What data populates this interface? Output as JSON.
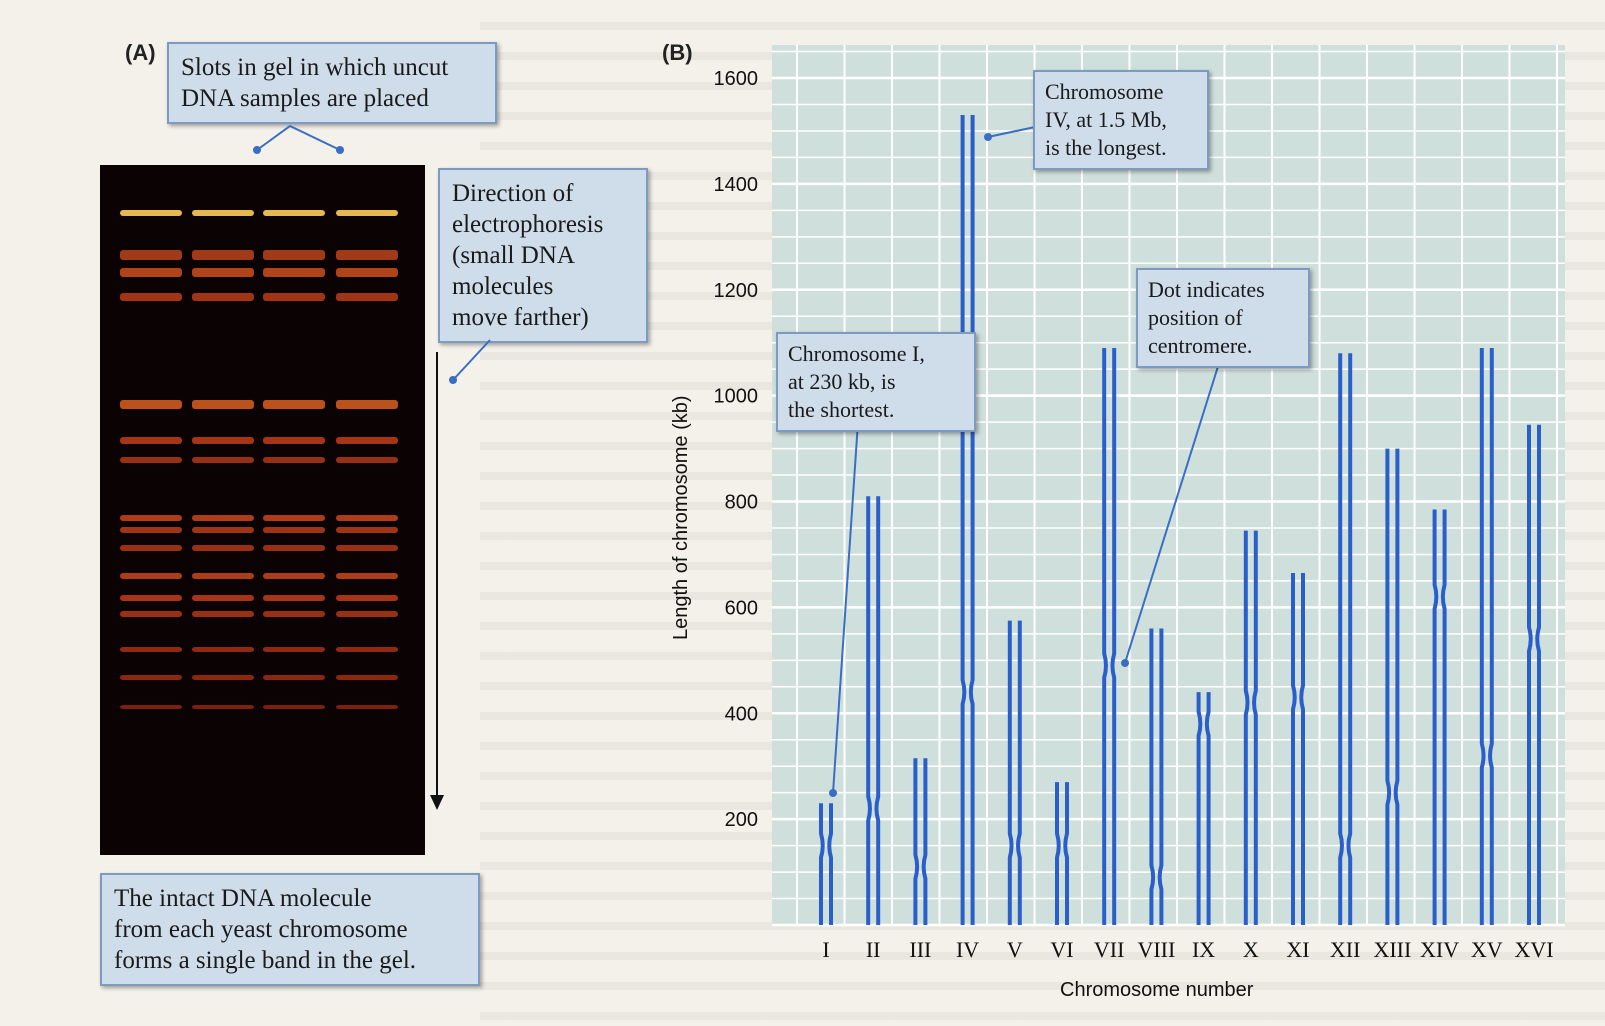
{
  "panel_a": {
    "label": "(A)",
    "callout_slots": "Slots in gel in which uncut\nDNA samples are placed",
    "callout_direction": "Direction of\nelectrophoresis\n(small DNA\nmolecules\nmove farther)",
    "callout_bands": "The intact DNA molecule\nfrom each yeast chromosome\nforms a single band in the gel."
  },
  "panel_b": {
    "label": "(B)",
    "callout_longest": "Chromosome\nIV, at 1.5 Mb,\nis the longest.",
    "callout_shortest": "Chromosome I,\nat 230 kb, is\nthe shortest.",
    "callout_centromere": "Dot indicates\nposition of\ncentromere."
  },
  "colors": {
    "chart_bg": "#cfe0dc",
    "grid": "#ffffff",
    "chromosome": "#2a5fc9",
    "callout_bg": "#cfdcea"
  },
  "chart_data": {
    "type": "bar",
    "title": "",
    "xlabel": "Chromosome number",
    "ylabel": "Length of chromosome (kb)",
    "ylim": [
      0,
      1600
    ],
    "yticks": [
      200,
      400,
      600,
      800,
      1000,
      1200,
      1400,
      1600
    ],
    "grid": true,
    "categories": [
      "I",
      "II",
      "III",
      "IV",
      "V",
      "VI",
      "VII",
      "VIII",
      "IX",
      "X",
      "XI",
      "XII",
      "XIII",
      "XIV",
      "XV",
      "XVI"
    ],
    "series": [
      {
        "values": [
          230,
          810,
          315,
          1530,
          575,
          270,
          1090,
          560,
          440,
          745,
          665,
          1080,
          900,
          785,
          1090,
          945
        ]
      }
    ],
    "centromere_kb": [
      150,
      220,
      110,
      440,
      150,
      150,
      490,
      90,
      380,
      420,
      430,
      150,
      250,
      620,
      320,
      540
    ]
  }
}
